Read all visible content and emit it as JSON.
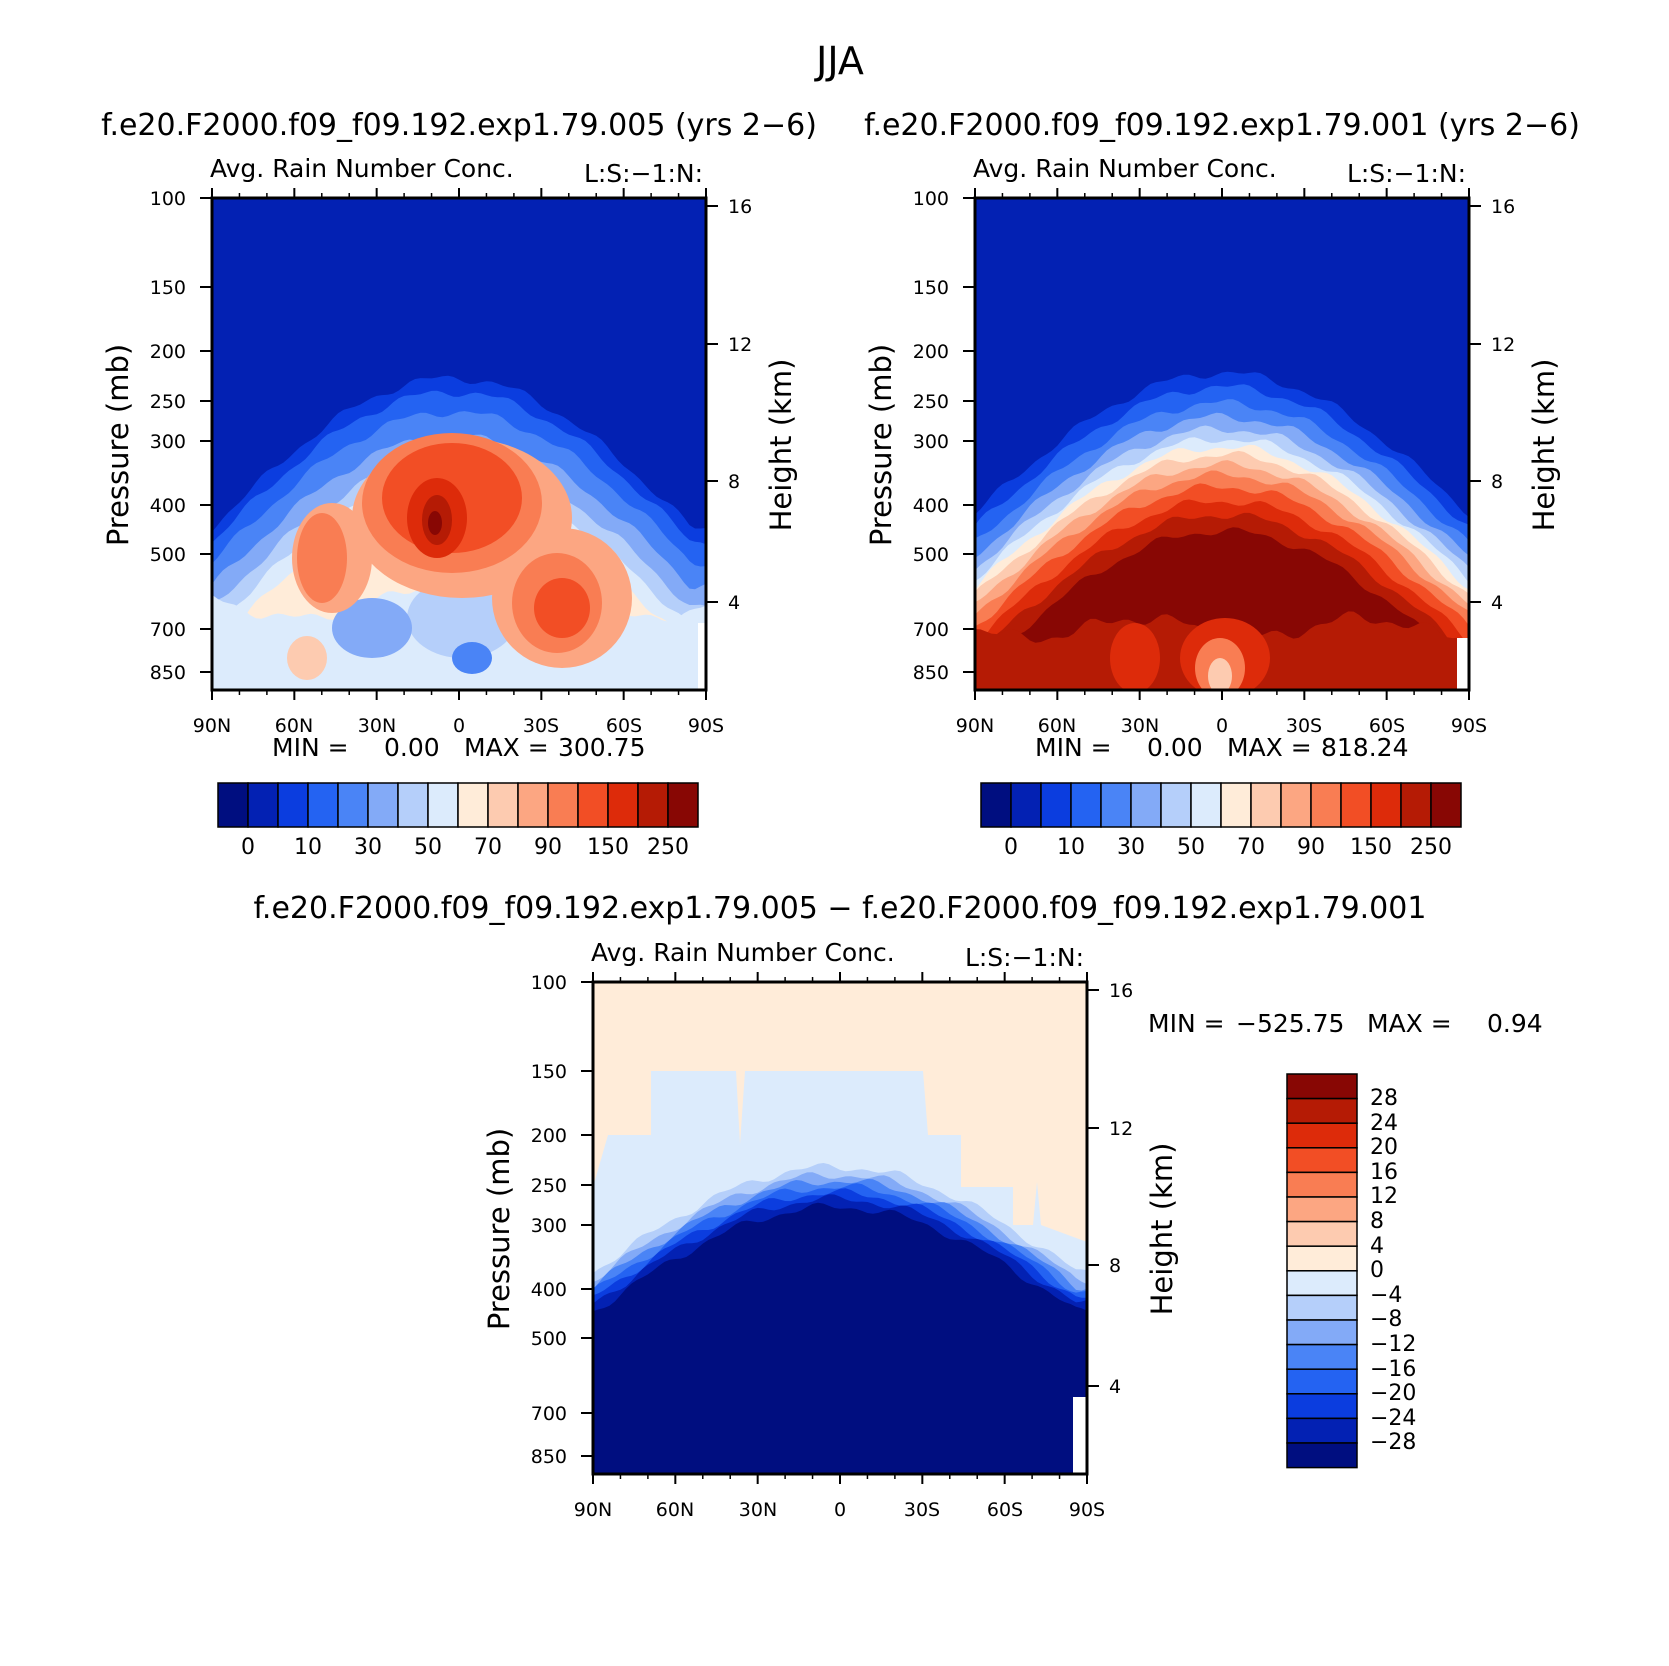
{
  "figure": {
    "season": "JJA"
  },
  "palette": {
    "abs": [
      "#000e80",
      "#0321b3",
      "#0b3ddf",
      "#2463f2",
      "#4a84f6",
      "#83aaf7",
      "#b5cffa",
      "#dcebfc",
      "#ffecd9",
      "#fdcbb0",
      "#fca682",
      "#f97d53",
      "#f24e25",
      "#dd2b0a",
      "#b51b05",
      "#880704"
    ],
    "diff": [
      "#000e80",
      "#0321b3",
      "#0b3ddf",
      "#2463f2",
      "#4a84f6",
      "#83aaf7",
      "#b5cffa",
      "#dcebfc",
      "#ffecd9",
      "#fdcbb0",
      "#fca682",
      "#f97d53",
      "#f24e25",
      "#dd2b0a",
      "#b51b05",
      "#880704"
    ]
  },
  "chart_data": [
    {
      "id": "case1",
      "type": "heatmap",
      "case_title": "f.e20.F2000.f09_f09.192.exp1.79.005 (yrs 2−6)",
      "title": "Avg. Rain Number Conc.",
      "right_label": "L:S:−1:N:",
      "ylabel": "Pressure (mb)",
      "ylabel2": "Height (km)",
      "xticks": [
        "90N",
        "60N",
        "30N",
        "0",
        "30S",
        "60S",
        "90S"
      ],
      "yticks": [
        "100",
        "150",
        "200",
        "250",
        "300",
        "400",
        "500",
        "700",
        "850"
      ],
      "y2ticks": [
        "16",
        "12",
        "8",
        "4"
      ],
      "ylim": [
        100,
        925
      ],
      "min_label": "MIN =",
      "min_value": "0.00",
      "max_label": "MAX =",
      "max_value": "300.75",
      "colorbar": {
        "levels": [
          "0",
          "10",
          "30",
          "50",
          "70",
          "90",
          "150",
          "250"
        ]
      }
    },
    {
      "id": "case2",
      "type": "heatmap",
      "case_title": "f.e20.F2000.f09_f09.192.exp1.79.001 (yrs 2−6)",
      "title": "Avg. Rain Number Conc.",
      "right_label": "L:S:−1:N:",
      "ylabel": "Pressure (mb)",
      "ylabel2": "Height (km)",
      "xticks": [
        "90N",
        "60N",
        "30N",
        "0",
        "30S",
        "60S",
        "90S"
      ],
      "yticks": [
        "100",
        "150",
        "200",
        "250",
        "300",
        "400",
        "500",
        "700",
        "850"
      ],
      "y2ticks": [
        "16",
        "12",
        "8",
        "4"
      ],
      "ylim": [
        100,
        925
      ],
      "min_label": "MIN =",
      "min_value": "0.00",
      "max_label": "MAX =",
      "max_value": "818.24",
      "colorbar": {
        "levels": [
          "0",
          "10",
          "30",
          "50",
          "70",
          "90",
          "150",
          "250"
        ]
      }
    },
    {
      "id": "diff",
      "type": "heatmap",
      "case_title": "f.e20.F2000.f09_f09.192.exp1.79.005 − f.e20.F2000.f09_f09.192.exp1.79.001",
      "title": "Avg. Rain Number Conc.",
      "right_label": "L:S:−1:N:",
      "ylabel": "Pressure (mb)",
      "ylabel2": "Height (km)",
      "xticks": [
        "90N",
        "60N",
        "30N",
        "0",
        "30S",
        "60S",
        "90S"
      ],
      "yticks": [
        "100",
        "150",
        "200",
        "250",
        "300",
        "400",
        "500",
        "700",
        "850"
      ],
      "y2ticks": [
        "16",
        "12",
        "8",
        "4"
      ],
      "ylim": [
        100,
        925
      ],
      "min_label": "MIN =",
      "min_value": "−525.75",
      "max_label": "MAX =",
      "max_value": "0.94",
      "colorbar": {
        "levels": [
          "28",
          "24",
          "20",
          "16",
          "12",
          "8",
          "4",
          "0",
          "−4",
          "−8",
          "−12",
          "−16",
          "−20",
          "−24",
          "−28"
        ]
      }
    }
  ]
}
